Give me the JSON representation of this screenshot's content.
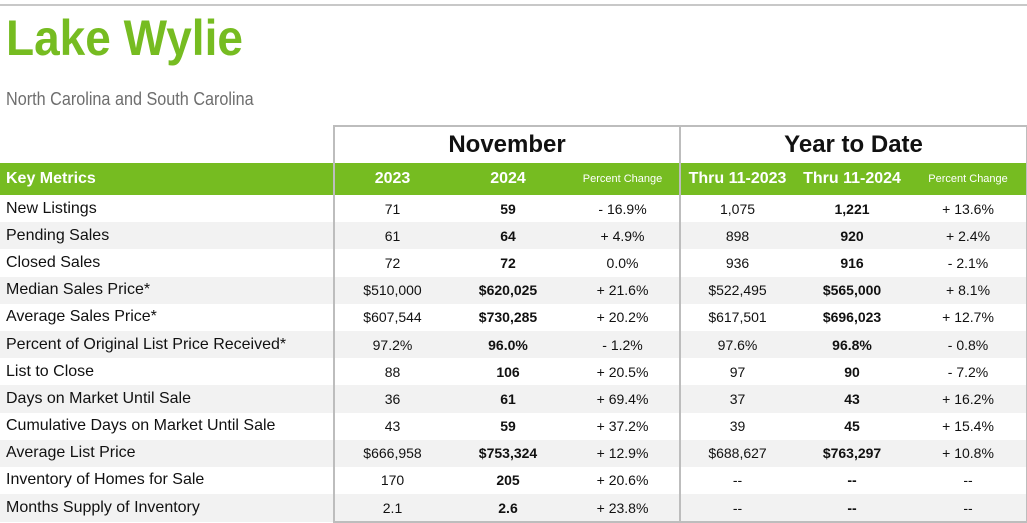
{
  "header": {
    "title": "Lake Wylie",
    "subtitle": "North Carolina and South Carolina"
  },
  "colors": {
    "accent": "#76bc21",
    "rule": "#bdbdbd",
    "stripe": "#f2f2f2"
  },
  "table": {
    "groups": {
      "monthly": "November",
      "ytd": "Year to Date"
    },
    "columns": {
      "metric": "Key Metrics",
      "m1": "2023",
      "m2": "2024",
      "mpct": "Percent Change",
      "y1": "Thru 11-2023",
      "y2": "Thru 11-2024",
      "ypct": "Percent Change"
    },
    "rows": [
      {
        "metric": "New Listings",
        "m1": "71",
        "m2": "59",
        "mpct": "- 16.9%",
        "y1": "1,075",
        "y2": "1,221",
        "ypct": "+ 13.6%"
      },
      {
        "metric": "Pending Sales",
        "m1": "61",
        "m2": "64",
        "mpct": "+ 4.9%",
        "y1": "898",
        "y2": "920",
        "ypct": "+ 2.4%"
      },
      {
        "metric": "Closed Sales",
        "m1": "72",
        "m2": "72",
        "mpct": "0.0%",
        "y1": "936",
        "y2": "916",
        "ypct": "- 2.1%"
      },
      {
        "metric": "Median Sales Price*",
        "m1": "$510,000",
        "m2": "$620,025",
        "mpct": "+ 21.6%",
        "y1": "$522,495",
        "y2": "$565,000",
        "ypct": "+ 8.1%"
      },
      {
        "metric": "Average Sales Price*",
        "m1": "$607,544",
        "m2": "$730,285",
        "mpct": "+ 20.2%",
        "y1": "$617,501",
        "y2": "$696,023",
        "ypct": "+ 12.7%"
      },
      {
        "metric": "Percent of Original List Price Received*",
        "m1": "97.2%",
        "m2": "96.0%",
        "mpct": "- 1.2%",
        "y1": "97.6%",
        "y2": "96.8%",
        "ypct": "- 0.8%"
      },
      {
        "metric": "List to Close",
        "m1": "88",
        "m2": "106",
        "mpct": "+ 20.5%",
        "y1": "97",
        "y2": "90",
        "ypct": "- 7.2%"
      },
      {
        "metric": "Days on Market Until Sale",
        "m1": "36",
        "m2": "61",
        "mpct": "+ 69.4%",
        "y1": "37",
        "y2": "43",
        "ypct": "+ 16.2%"
      },
      {
        "metric": "Cumulative Days on Market Until Sale",
        "m1": "43",
        "m2": "59",
        "mpct": "+ 37.2%",
        "y1": "39",
        "y2": "45",
        "ypct": "+ 15.4%"
      },
      {
        "metric": "Average List Price",
        "m1": "$666,958",
        "m2": "$753,324",
        "mpct": "+ 12.9%",
        "y1": "$688,627",
        "y2": "$763,297",
        "ypct": "+ 10.8%"
      },
      {
        "metric": "Inventory of Homes for Sale",
        "m1": "170",
        "m2": "205",
        "mpct": "+ 20.6%",
        "y1": "--",
        "y2": "--",
        "ypct": "--"
      },
      {
        "metric": "Months Supply of Inventory",
        "m1": "2.1",
        "m2": "2.6",
        "mpct": "+ 23.8%",
        "y1": "--",
        "y2": "--",
        "ypct": "--"
      }
    ]
  }
}
